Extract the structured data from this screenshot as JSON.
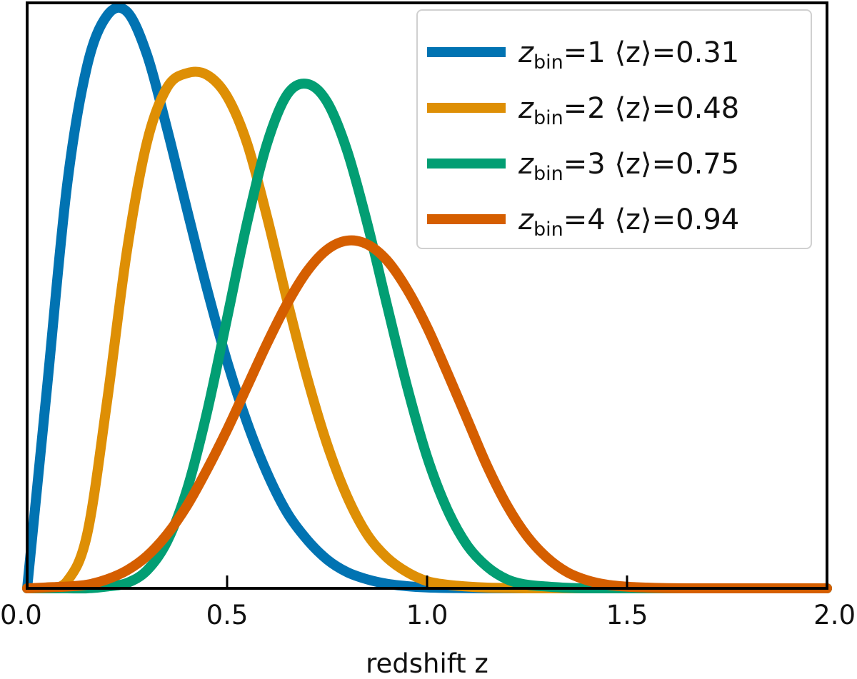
{
  "chart_data": {
    "type": "line",
    "title": "",
    "xlabel": "redshift z",
    "ylabel": "",
    "xlim": [
      0.0,
      2.0
    ],
    "ylim": [
      0,
      3.25
    ],
    "xticks": [
      0.0,
      0.5,
      1.0,
      1.5,
      2.0
    ],
    "xtick_labels": [
      "0.0",
      "0.5",
      "1.0",
      "1.5",
      "2.0"
    ],
    "yticks_shown": false,
    "grid": false,
    "legend_position": "top-right",
    "x": [
      0.0,
      0.05,
      0.1,
      0.15,
      0.2,
      0.25,
      0.3,
      0.35,
      0.4,
      0.45,
      0.5,
      0.55,
      0.6,
      0.65,
      0.7,
      0.75,
      0.8,
      0.85,
      0.9,
      0.95,
      1.0,
      1.05,
      1.1,
      1.15,
      1.2,
      1.25,
      1.3,
      1.35,
      1.4,
      1.45,
      1.5,
      1.55,
      1.6,
      1.65,
      1.7,
      1.75,
      1.8,
      1.85,
      1.9,
      1.95,
      2.0
    ],
    "series": [
      {
        "name": "zbin=1 ⟨z⟩=0.31",
        "name_base": "z",
        "name_sub": "bin",
        "name_rest": "=1 ⟨z⟩=0.31",
        "color": "#0173b2",
        "values": [
          0.0,
          1.12,
          2.24,
          2.9,
          3.18,
          3.2,
          2.96,
          2.55,
          2.1,
          1.66,
          1.26,
          0.92,
          0.64,
          0.42,
          0.27,
          0.16,
          0.09,
          0.05,
          0.025,
          0.012,
          0.005,
          0.002,
          0.001,
          0.0,
          0.0,
          0.0,
          0.0,
          0.0,
          0.0,
          0.0,
          0.0,
          0.0,
          0.0,
          0.0,
          0.0,
          0.0,
          0.0,
          0.0,
          0.0,
          0.0,
          0.0
        ]
      },
      {
        "name": "zbin=2 ⟨z⟩=0.48",
        "name_base": "z",
        "name_sub": "bin",
        "name_rest": "=2 ⟨z⟩=0.48",
        "color": "#de8f05",
        "values": [
          0.0,
          0.005,
          0.04,
          0.3,
          1.04,
          1.88,
          2.48,
          2.78,
          2.86,
          2.85,
          2.73,
          2.47,
          2.06,
          1.6,
          1.17,
          0.8,
          0.51,
          0.3,
          0.17,
          0.09,
          0.04,
          0.02,
          0.01,
          0.004,
          0.002,
          0.0,
          0.0,
          0.0,
          0.0,
          0.0,
          0.0,
          0.0,
          0.0,
          0.0,
          0.0,
          0.0,
          0.0,
          0.0,
          0.0,
          0.0,
          0.0
        ]
      },
      {
        "name": "zbin=3 ⟨z⟩=0.75",
        "name_base": "z",
        "name_sub": "bin",
        "name_rest": "=3 ⟨z⟩=0.75",
        "color": "#029e73",
        "values": [
          0.0,
          0.0,
          0.0,
          0.0,
          0.01,
          0.03,
          0.1,
          0.26,
          0.55,
          0.98,
          1.5,
          2.03,
          2.47,
          2.74,
          2.8,
          2.7,
          2.43,
          2.03,
          1.57,
          1.12,
          0.73,
          0.44,
          0.24,
          0.12,
          0.05,
          0.02,
          0.01,
          0.003,
          0.0,
          0.0,
          0.0,
          0.0,
          0.0,
          0.0,
          0.0,
          0.0,
          0.0,
          0.0,
          0.0,
          0.0,
          0.0
        ]
      },
      {
        "name": "zbin=4 ⟨z⟩=0.94",
        "name_base": "z",
        "name_sub": "bin",
        "name_rest": "=4 ⟨z⟩=0.94",
        "color": "#d55e00",
        "values": [
          0.0,
          0.005,
          0.01,
          0.02,
          0.05,
          0.1,
          0.18,
          0.3,
          0.46,
          0.66,
          0.88,
          1.12,
          1.36,
          1.58,
          1.76,
          1.88,
          1.93,
          1.91,
          1.82,
          1.66,
          1.45,
          1.2,
          0.94,
          0.68,
          0.46,
          0.29,
          0.17,
          0.09,
          0.045,
          0.02,
          0.009,
          0.004,
          0.001,
          0.0,
          0.0,
          0.0,
          0.0,
          0.0,
          0.0,
          0.0,
          0.0
        ]
      }
    ]
  }
}
